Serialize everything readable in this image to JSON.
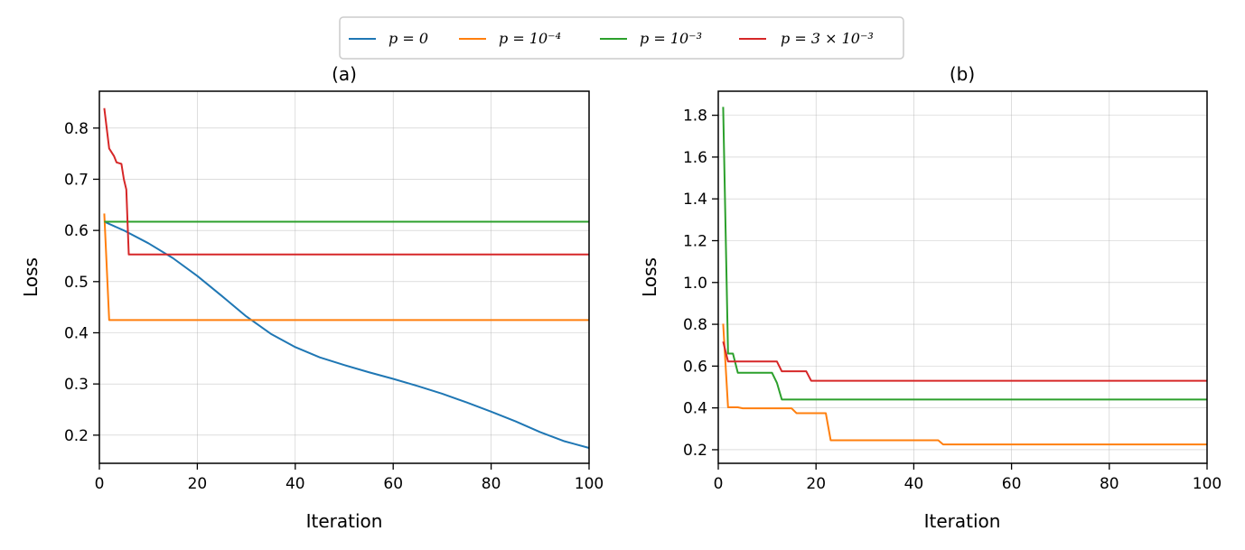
{
  "legend": {
    "entries": [
      {
        "label": "p = 0",
        "color": "#1f77b4"
      },
      {
        "label": "p = 10⁻⁴",
        "color": "#ff7f0e"
      },
      {
        "label": "p = 10⁻³",
        "color": "#2ca02c"
      },
      {
        "label": "p = 3 × 10⁻³",
        "color": "#d62728"
      }
    ]
  },
  "chart_data": [
    {
      "type": "line",
      "title": "(a)",
      "xlabel": "Iteration",
      "ylabel": "Loss",
      "xlim": [
        0,
        100
      ],
      "ylim": [
        0.145,
        0.872
      ],
      "xticks": [
        0,
        20,
        40,
        60,
        80,
        100
      ],
      "yticks": [
        0.2,
        0.3,
        0.4,
        0.5,
        0.6,
        0.7,
        0.8
      ],
      "grid": true,
      "series": [
        {
          "name": "p = 0",
          "color": "#1f77b4",
          "points": [
            [
              1,
              0.617
            ],
            [
              5,
              0.6
            ],
            [
              10,
              0.575
            ],
            [
              15,
              0.546
            ],
            [
              20,
              0.511
            ],
            [
              25,
              0.472
            ],
            [
              30,
              0.432
            ],
            [
              35,
              0.398
            ],
            [
              40,
              0.372
            ],
            [
              45,
              0.352
            ],
            [
              50,
              0.337
            ],
            [
              55,
              0.323
            ],
            [
              60,
              0.31
            ],
            [
              65,
              0.296
            ],
            [
              70,
              0.281
            ],
            [
              75,
              0.264
            ],
            [
              80,
              0.246
            ],
            [
              85,
              0.227
            ],
            [
              90,
              0.206
            ],
            [
              95,
              0.188
            ],
            [
              100,
              0.175
            ]
          ]
        },
        {
          "name": "p = 10⁻⁴",
          "color": "#ff7f0e",
          "points": [
            [
              1,
              0.633
            ],
            [
              2,
              0.425
            ],
            [
              100,
              0.425
            ]
          ]
        },
        {
          "name": "p = 10⁻³",
          "color": "#2ca02c",
          "points": [
            [
              1,
              0.617
            ],
            [
              100,
              0.617
            ]
          ]
        },
        {
          "name": "p = 3 × 10⁻³",
          "color": "#d62728",
          "points": [
            [
              1,
              0.839
            ],
            [
              2,
              0.76
            ],
            [
              3,
              0.745
            ],
            [
              3.5,
              0.733
            ],
            [
              4.5,
              0.73
            ],
            [
              5,
              0.7
            ],
            [
              5.5,
              0.68
            ],
            [
              6,
              0.553
            ],
            [
              100,
              0.553
            ]
          ]
        }
      ]
    },
    {
      "type": "line",
      "title": "(b)",
      "xlabel": "Iteration",
      "ylabel": "Loss",
      "xlim": [
        0,
        100
      ],
      "ylim": [
        0.135,
        1.915
      ],
      "xticks": [
        0,
        20,
        40,
        60,
        80,
        100
      ],
      "yticks": [
        0.2,
        0.4,
        0.6,
        0.8,
        1.0,
        1.2,
        1.4,
        1.6,
        1.8
      ],
      "grid": true,
      "series": [
        {
          "name": "p = 10⁻⁴",
          "color": "#ff7f0e",
          "points": [
            [
              1,
              0.803
            ],
            [
              2,
              0.403
            ],
            [
              4,
              0.403
            ],
            [
              5,
              0.398
            ],
            [
              15,
              0.398
            ],
            [
              16,
              0.375
            ],
            [
              22,
              0.375
            ],
            [
              23,
              0.245
            ],
            [
              45,
              0.245
            ],
            [
              46,
              0.225
            ],
            [
              100,
              0.225
            ]
          ]
        },
        {
          "name": "p = 10⁻³",
          "color": "#2ca02c",
          "points": [
            [
              1,
              1.84
            ],
            [
              2,
              0.66
            ],
            [
              3,
              0.66
            ],
            [
              4,
              0.568
            ],
            [
              11,
              0.568
            ],
            [
              12,
              0.52
            ],
            [
              13,
              0.44
            ],
            [
              100,
              0.44
            ]
          ]
        },
        {
          "name": "p = 3 × 10⁻³",
          "color": "#d62728",
          "points": [
            [
              1,
              0.717
            ],
            [
              2,
              0.622
            ],
            [
              12,
              0.622
            ],
            [
              13,
              0.575
            ],
            [
              18,
              0.575
            ],
            [
              19,
              0.53
            ],
            [
              100,
              0.53
            ]
          ]
        }
      ]
    }
  ]
}
